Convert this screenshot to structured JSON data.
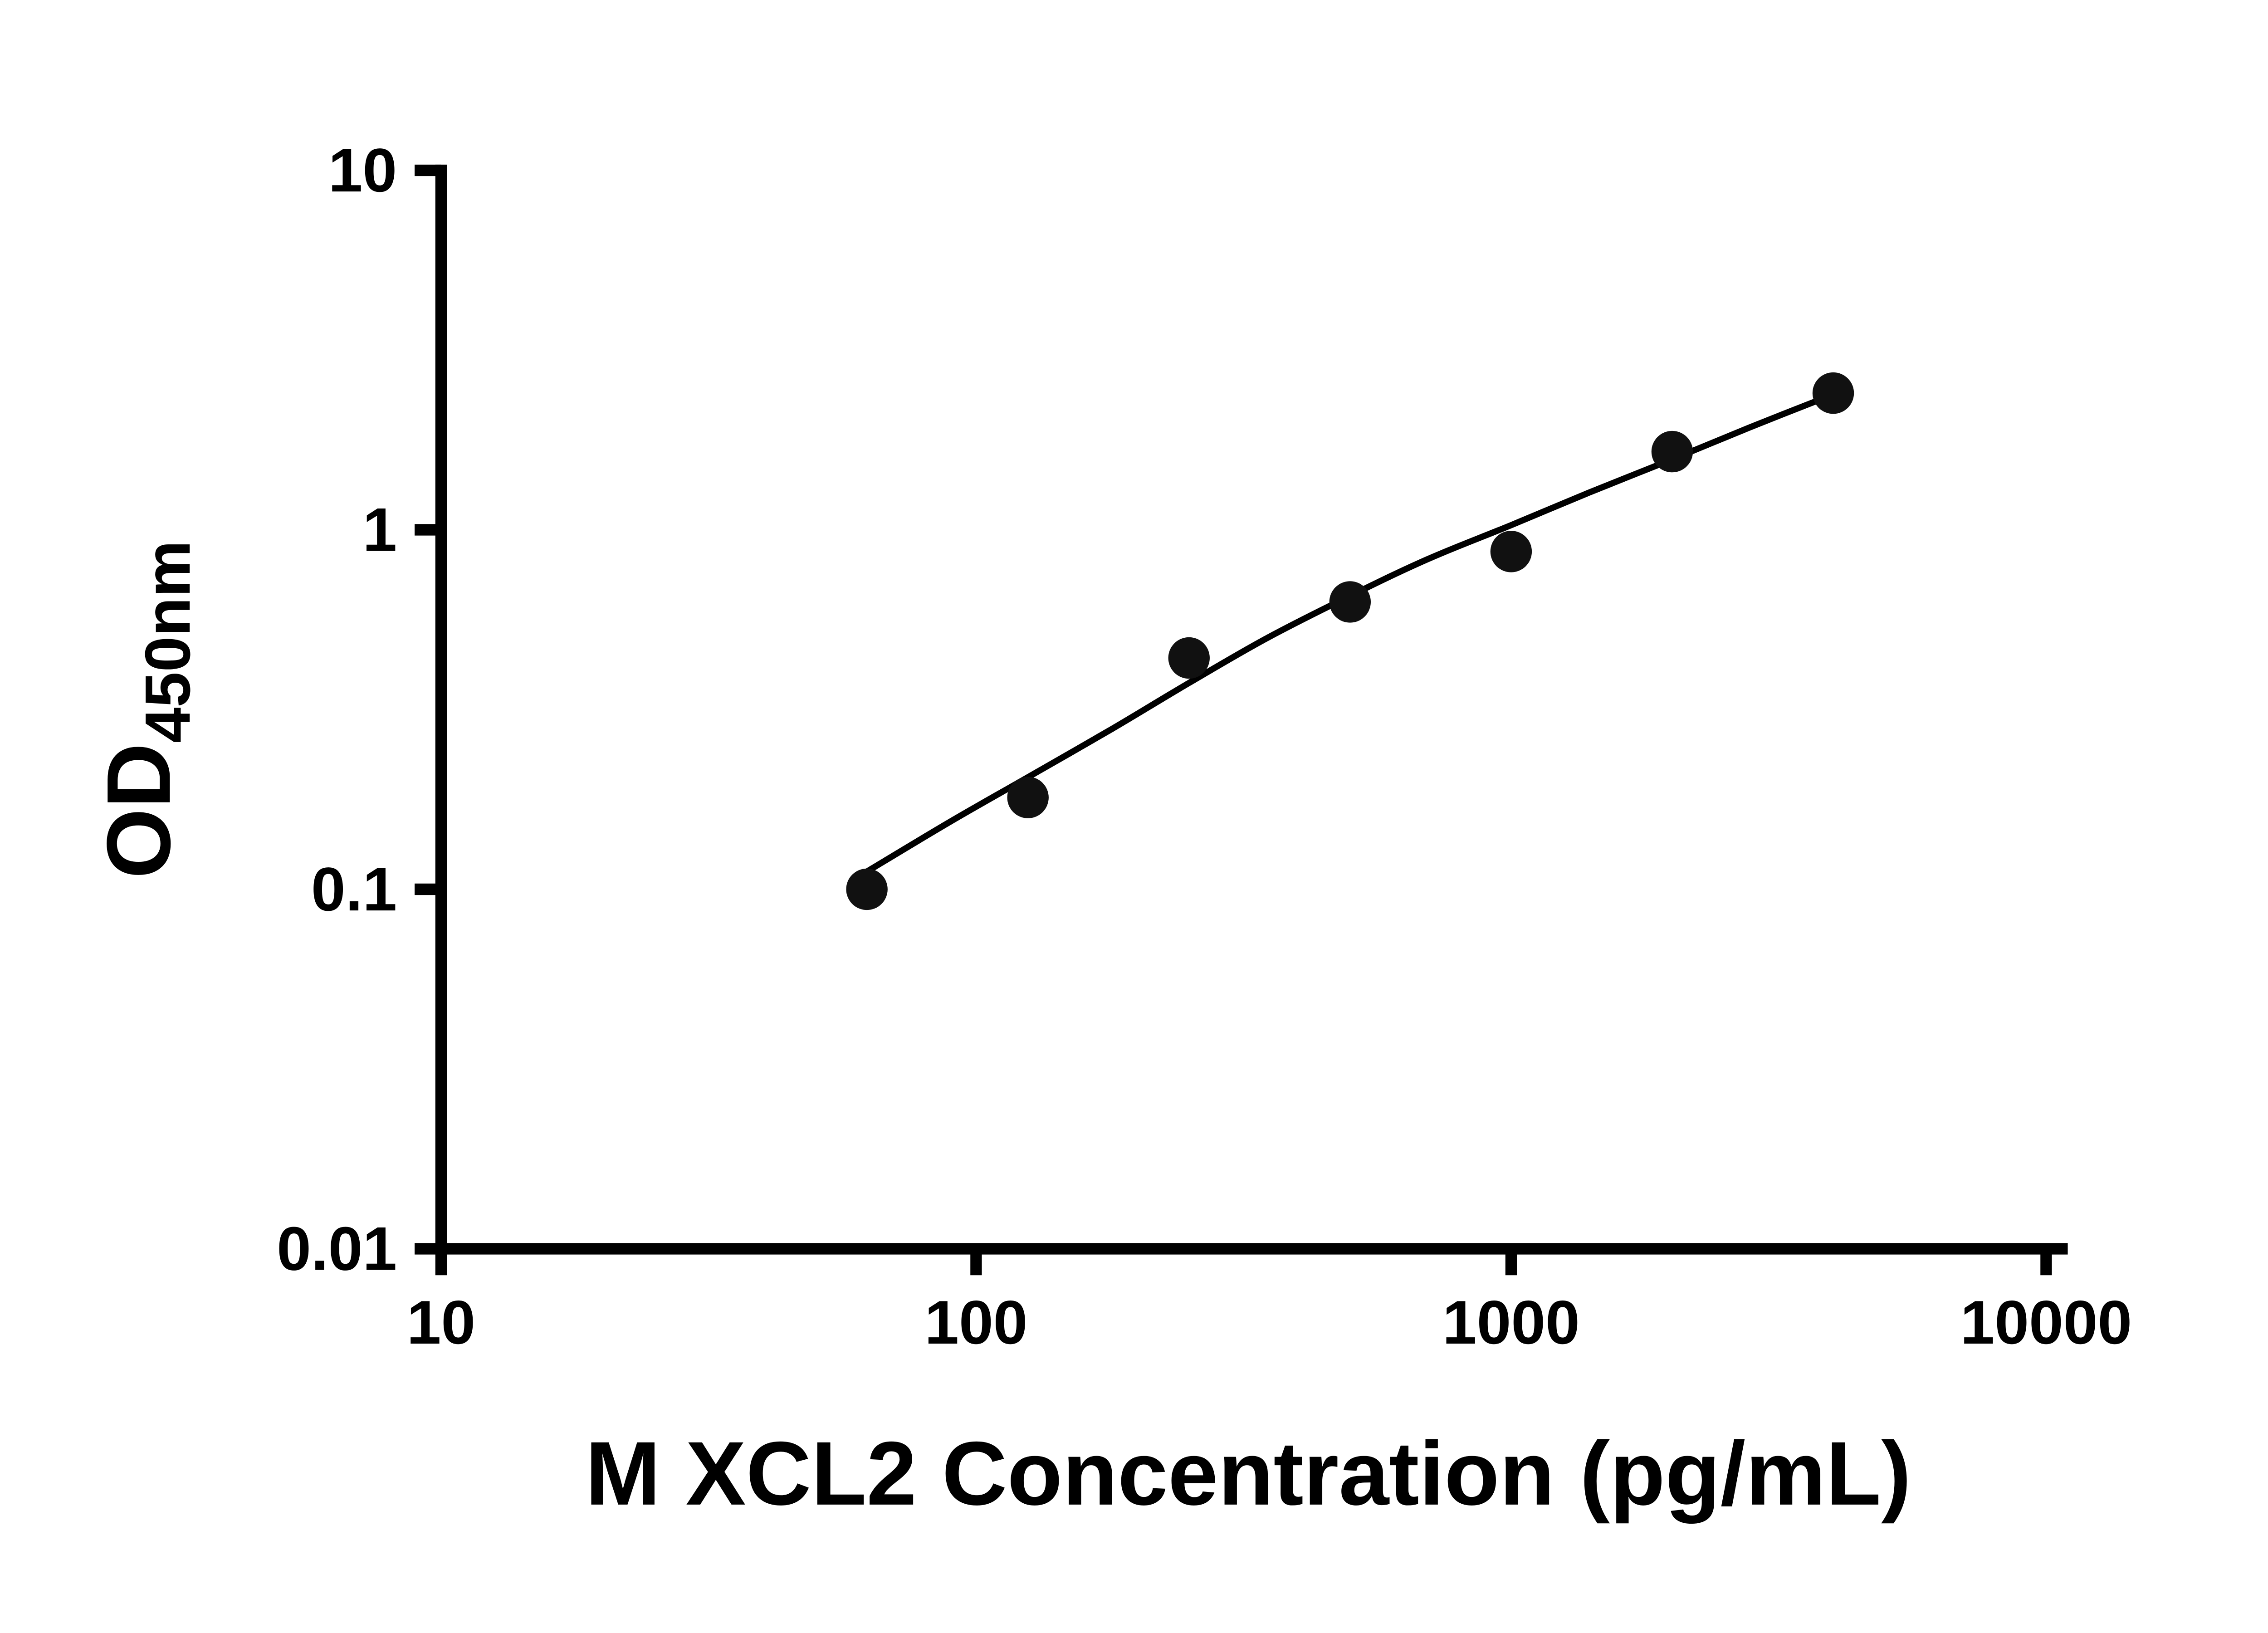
{
  "figure": {
    "background": "#ffffff",
    "axis_color": "#000000",
    "text_color": "#000000",
    "point_color": "#111111",
    "curve_color": "#000000"
  },
  "chart_data": {
    "type": "scatter",
    "title": "",
    "xlabel": "M XCL2 Concentration (pg/mL)",
    "ylabel": "OD450nm",
    "ylabel_base": "OD",
    "ylabel_subscript": "450nm",
    "x_scale": "log",
    "y_scale": "log",
    "xlim": [
      10,
      10000
    ],
    "ylim": [
      0.01,
      10
    ],
    "x_ticks": [
      10,
      100,
      1000,
      10000
    ],
    "x_tick_labels": [
      "10",
      "100",
      "1000",
      "10000"
    ],
    "y_ticks": [
      0.01,
      0.1,
      1,
      10
    ],
    "y_tick_labels": [
      "0.01",
      "0.1",
      "1",
      "10"
    ],
    "grid": false,
    "legend": false,
    "series": [
      {
        "name": "standard-points",
        "x": [
          62.5,
          125,
          250,
          500,
          1000,
          2000,
          4000
        ],
        "y": [
          0.1,
          0.18,
          0.44,
          0.63,
          0.87,
          1.65,
          2.4
        ]
      }
    ],
    "fit_curve": {
      "name": "standard-curve-fit",
      "x": [
        62.5,
        90,
        125,
        180,
        250,
        350,
        500,
        700,
        1000,
        1400,
        2000,
        2800,
        4000
      ],
      "y": [
        0.112,
        0.155,
        0.205,
        0.28,
        0.375,
        0.5,
        0.655,
        0.83,
        1.03,
        1.27,
        1.57,
        1.93,
        2.38
      ]
    }
  }
}
